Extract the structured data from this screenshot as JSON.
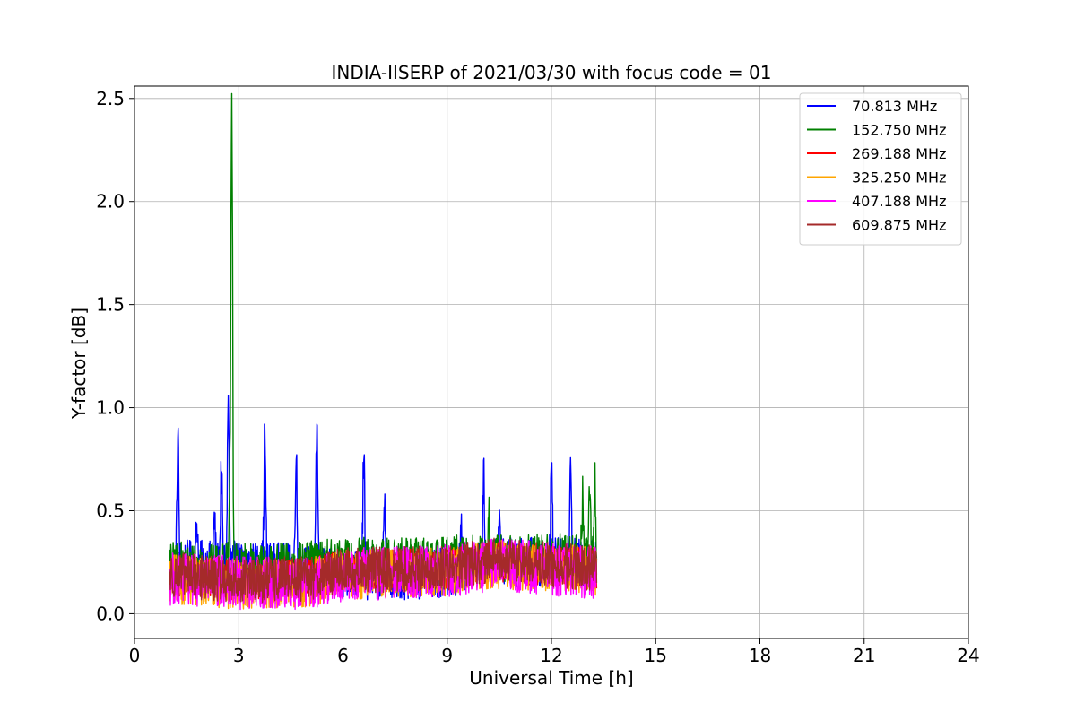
{
  "chart_data": {
    "type": "line",
    "title": "INDIA-IISERP of 2021/03/30 with focus code = 01",
    "xlabel": "Universal Time [h]",
    "ylabel": "Y-factor [dB]",
    "xlim": [
      0,
      24
    ],
    "ylim": [
      -0.12,
      2.56
    ],
    "xticks": [
      0,
      3,
      6,
      9,
      12,
      15,
      18,
      21,
      24
    ],
    "yticks": [
      0.0,
      0.5,
      1.0,
      1.5,
      2.0,
      2.5
    ],
    "xtick_labels": [
      "0",
      "3",
      "6",
      "9",
      "12",
      "15",
      "18",
      "21",
      "24"
    ],
    "ytick_labels": [
      "0.0",
      "0.5",
      "1.0",
      "1.5",
      "2.0",
      "2.5"
    ],
    "grid": true,
    "legend_position": "top-right",
    "time_range": [
      1.0,
      13.3
    ],
    "series": [
      {
        "name": " 70.813 MHz",
        "color": "#0000ff",
        "baseline": [
          [
            1.0,
            0.24
          ],
          [
            4.0,
            0.23
          ],
          [
            5.5,
            0.2
          ],
          [
            7.0,
            0.18
          ],
          [
            9.0,
            0.2
          ],
          [
            10.5,
            0.25
          ],
          [
            13.3,
            0.25
          ]
        ],
        "band": 0.12,
        "spikes": [
          [
            1.25,
            0.87
          ],
          [
            1.8,
            0.45
          ],
          [
            2.3,
            0.45
          ],
          [
            2.5,
            0.69
          ],
          [
            2.7,
            1.04
          ],
          [
            3.75,
            0.88
          ],
          [
            4.65,
            0.8
          ],
          [
            5.25,
            0.92
          ],
          [
            6.6,
            0.79
          ],
          [
            7.2,
            0.6
          ],
          [
            9.4,
            0.5
          ],
          [
            10.05,
            0.66
          ],
          [
            10.5,
            0.51
          ],
          [
            12.0,
            0.72
          ],
          [
            12.55,
            0.79
          ]
        ]
      },
      {
        "name": "152.750 MHz",
        "color": "#008000",
        "baseline": [
          [
            1.0,
            0.23
          ],
          [
            4.0,
            0.22
          ],
          [
            6.0,
            0.25
          ],
          [
            9.0,
            0.26
          ],
          [
            10.5,
            0.27
          ],
          [
            13.3,
            0.27
          ]
        ],
        "band": 0.12,
        "spikes": [
          [
            2.8,
            2.43
          ],
          [
            2.75,
            0.5
          ],
          [
            12.9,
            0.55
          ],
          [
            13.1,
            0.6
          ],
          [
            13.25,
            0.64
          ],
          [
            10.2,
            0.46
          ]
        ]
      },
      {
        "name": "269.188 MHz",
        "color": "#ff0000",
        "baseline": [
          [
            1.0,
            0.18
          ],
          [
            3.0,
            0.16
          ],
          [
            5.0,
            0.17
          ],
          [
            6.0,
            0.21
          ],
          [
            9.0,
            0.22
          ],
          [
            10.3,
            0.25
          ],
          [
            13.3,
            0.22
          ]
        ],
        "band": 0.1,
        "spikes": []
      },
      {
        "name": "325.250 MHz",
        "color": "#ffa500",
        "baseline": [
          [
            1.0,
            0.17
          ],
          [
            3.0,
            0.14
          ],
          [
            5.0,
            0.15
          ],
          [
            6.0,
            0.19
          ],
          [
            9.0,
            0.2
          ],
          [
            10.3,
            0.24
          ],
          [
            13.3,
            0.21
          ]
        ],
        "band": 0.12,
        "spikes": []
      },
      {
        "name": "407.188 MHz",
        "color": "#ff00ff",
        "baseline": [
          [
            1.0,
            0.17
          ],
          [
            3.0,
            0.15
          ],
          [
            5.0,
            0.15
          ],
          [
            6.0,
            0.19
          ],
          [
            9.0,
            0.21
          ],
          [
            10.3,
            0.24
          ],
          [
            13.3,
            0.2
          ]
        ],
        "band": 0.13,
        "spikes": []
      },
      {
        "name": "609.875 MHz",
        "color": "#a52a2a",
        "baseline": [
          [
            1.0,
            0.19
          ],
          [
            3.0,
            0.16
          ],
          [
            5.0,
            0.17
          ],
          [
            6.0,
            0.21
          ],
          [
            9.0,
            0.22
          ],
          [
            10.3,
            0.26
          ],
          [
            13.3,
            0.22
          ]
        ],
        "band": 0.11,
        "spikes": []
      }
    ]
  }
}
